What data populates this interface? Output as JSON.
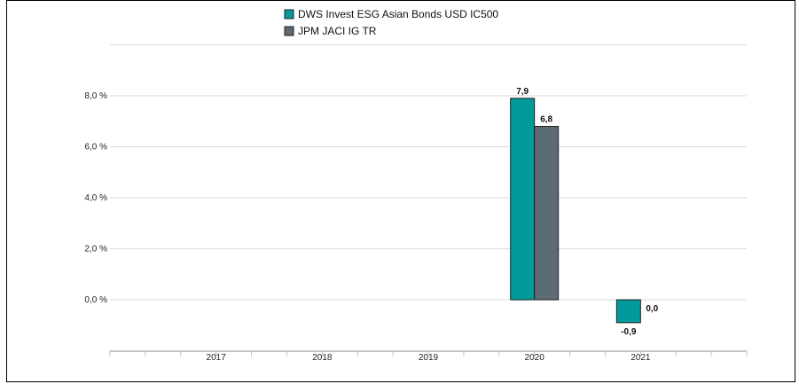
{
  "chart_data": {
    "type": "bar",
    "categories": [
      "2017",
      "2018",
      "2019",
      "2020",
      "2021"
    ],
    "series": [
      {
        "name": "DWS Invest ESG Asian Bonds  USD IC500",
        "color": "#009a9a",
        "values": [
          null,
          null,
          null,
          7.9,
          -0.9
        ],
        "labels": [
          "",
          "",
          "",
          "7,9",
          "-0,9"
        ]
      },
      {
        "name": "JPM JACI IG TR",
        "color": "#5d6b74",
        "values": [
          null,
          null,
          null,
          6.8,
          0.0
        ],
        "labels": [
          "",
          "",
          "",
          "6,8",
          "0,0"
        ]
      }
    ],
    "yticks": [
      0,
      2,
      4,
      6,
      8
    ],
    "ytick_labels": [
      "0,0 %",
      "2,0 %",
      "4,0 %",
      "6,0 %",
      "8,0 %"
    ],
    "ylim": [
      -2,
      10
    ],
    "grid": true,
    "legend": "top-center"
  }
}
